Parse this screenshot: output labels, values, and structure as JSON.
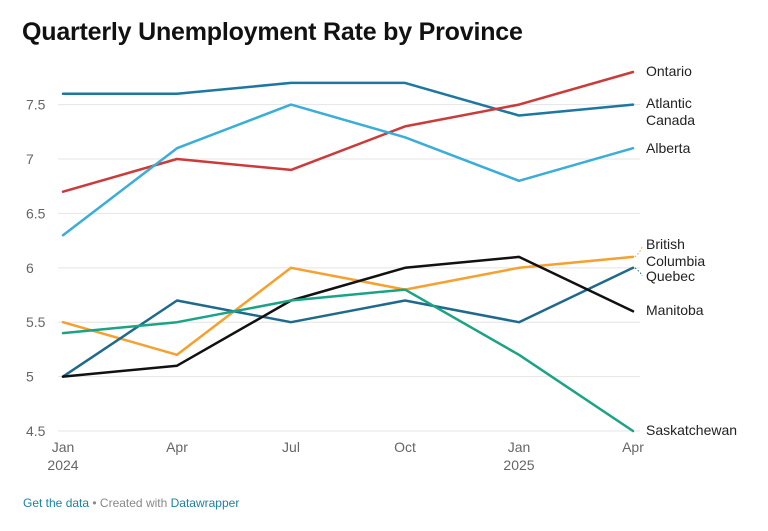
{
  "chart_data": {
    "type": "line",
    "title": "Quarterly Unemployment Rate by Province",
    "x": [
      "Jan 2024",
      "Apr 2024",
      "Jul 2024",
      "Oct 2024",
      "Jan 2025",
      "Apr 2025"
    ],
    "x_tick_labels": [
      {
        "line1": "Jan",
        "line2": "2024"
      },
      {
        "line1": "Apr",
        "line2": ""
      },
      {
        "line1": "Jul",
        "line2": ""
      },
      {
        "line1": "Oct",
        "line2": ""
      },
      {
        "line1": "Jan",
        "line2": "2025"
      },
      {
        "line1": "Apr",
        "line2": ""
      }
    ],
    "y_ticks": [
      "4.5",
      "5",
      "5.5",
      "6",
      "6.5",
      "7",
      "7.5"
    ],
    "ylim": [
      4.5,
      7.8
    ],
    "grid": true,
    "legend": "direct labels at right end of lines",
    "series": [
      {
        "name": "Atlantic Canada",
        "label_lines": [
          "Atlantic",
          "Canada"
        ],
        "color": "#1d77a0",
        "values": [
          7.6,
          7.6,
          7.7,
          7.7,
          7.4,
          7.5
        ]
      },
      {
        "name": "Ontario",
        "label_lines": [
          "Ontario"
        ],
        "color": "#cc3a3a",
        "values": [
          6.7,
          7.0,
          6.9,
          7.3,
          7.5,
          7.8
        ]
      },
      {
        "name": "Alberta",
        "label_lines": [
          "Alberta"
        ],
        "color": "#3aaed8",
        "values": [
          6.3,
          7.1,
          7.5,
          7.2,
          6.8,
          7.1
        ]
      },
      {
        "name": "British Columbia",
        "label_lines": [
          "British",
          "Columbia"
        ],
        "color": "#f7a02d",
        "values": [
          5.5,
          5.2,
          6.0,
          5.8,
          6.0,
          6.1
        ]
      },
      {
        "name": "Quebec",
        "label_lines": [
          "Quebec"
        ],
        "color": "#1f6a8c",
        "values": [
          5.0,
          5.7,
          5.5,
          5.7,
          5.5,
          6.0
        ]
      },
      {
        "name": "Manitoba",
        "label_lines": [
          "Manitoba"
        ],
        "color": "#111111",
        "values": [
          5.0,
          5.1,
          5.7,
          6.0,
          6.1,
          5.6
        ]
      },
      {
        "name": "Saskatchewan",
        "label_lines": [
          "Saskatchewan"
        ],
        "color": "#1aa384",
        "values": [
          5.4,
          5.5,
          5.7,
          5.8,
          5.2,
          4.5
        ]
      }
    ]
  },
  "footer": {
    "get_data": "Get the data",
    "separator": " • Created with ",
    "tool": "Datawrapper"
  }
}
